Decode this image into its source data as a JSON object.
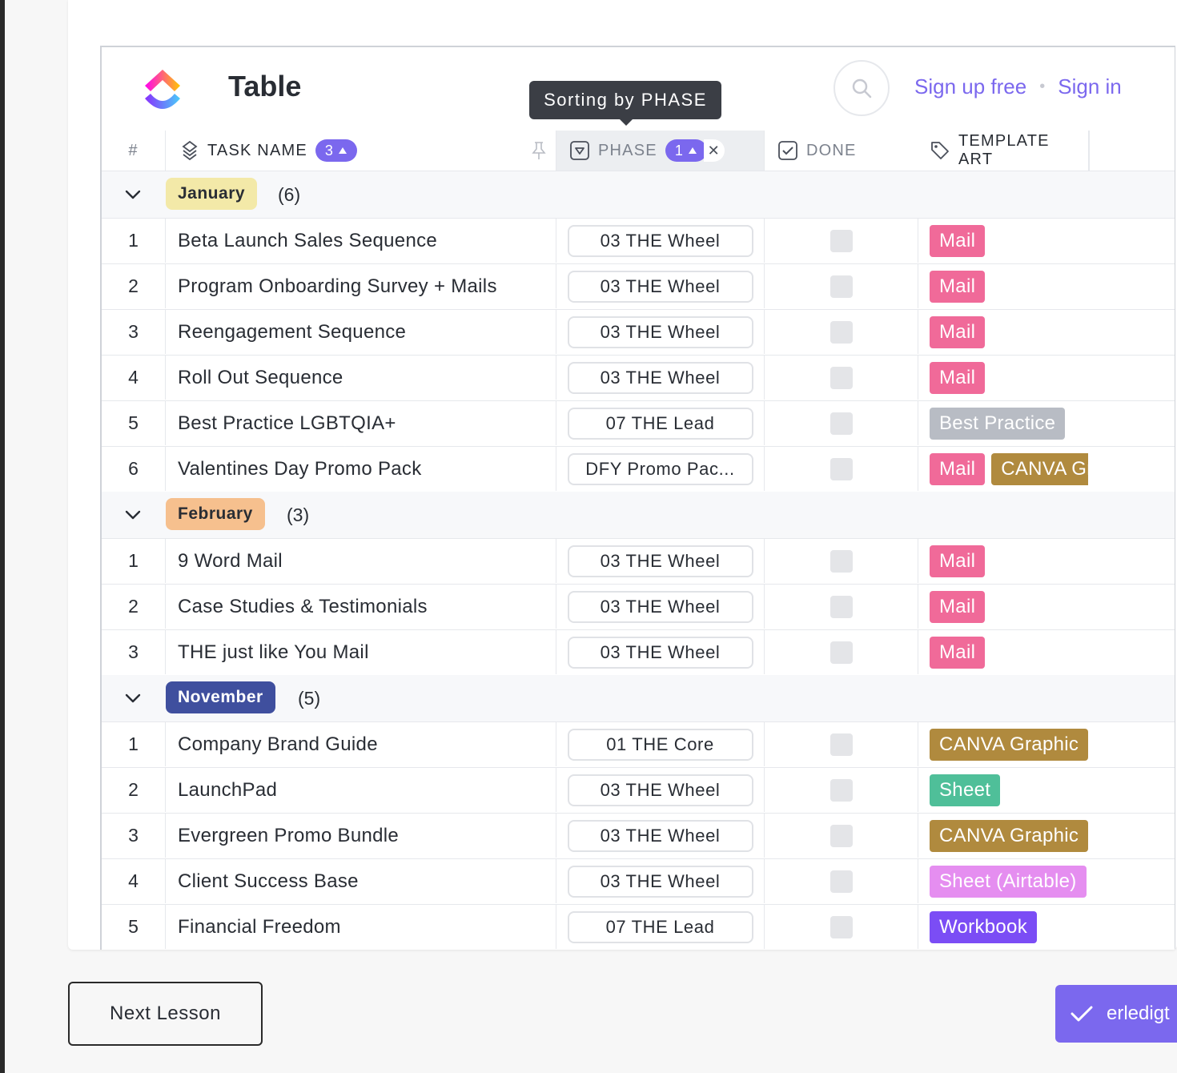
{
  "header": {
    "title": "Table",
    "sign_up": "Sign up free",
    "separator": "•",
    "sign_in": "Sign in",
    "tooltip": "Sorting by PHASE"
  },
  "columns": {
    "num": "#",
    "task_name": "TASK NAME",
    "task_sort": "3",
    "phase": "PHASE",
    "phase_sort": "1",
    "done": "DONE",
    "template_art": "TEMPLATE ART"
  },
  "groups": [
    {
      "label": "January",
      "count": "(6)",
      "bg": "#f3e9a8",
      "fg": "#292d34",
      "rows": [
        {
          "n": "1",
          "task": "Beta Launch Sales Sequence",
          "phase": "03 THE Wheel",
          "tags": [
            {
              "t": "Mail",
              "c": "#f06a99"
            }
          ]
        },
        {
          "n": "2",
          "task": "Program Onboarding Survey + Mails",
          "phase": "03 THE Wheel",
          "tags": [
            {
              "t": "Mail",
              "c": "#f06a99"
            }
          ]
        },
        {
          "n": "3",
          "task": "Reengagement Sequence",
          "phase": "03 THE Wheel",
          "tags": [
            {
              "t": "Mail",
              "c": "#f06a99"
            }
          ]
        },
        {
          "n": "4",
          "task": "Roll Out Sequence",
          "phase": "03 THE Wheel",
          "tags": [
            {
              "t": "Mail",
              "c": "#f06a99"
            }
          ]
        },
        {
          "n": "5",
          "task": "Best Practice LGBTQIA+",
          "phase": "07 THE Lead",
          "tags": [
            {
              "t": "Best Practice",
              "c": "#b8bcc4"
            }
          ]
        },
        {
          "n": "6",
          "task": "Valentines Day Promo Pack",
          "phase": "DFY Promo Pac...",
          "tags": [
            {
              "t": "Mail",
              "c": "#f06a99"
            },
            {
              "t": "CANVA Graphic",
              "c": "#b08a3e"
            }
          ]
        }
      ]
    },
    {
      "label": "February",
      "count": "(3)",
      "bg": "#f6c08e",
      "fg": "#292d34",
      "rows": [
        {
          "n": "1",
          "task": "9 Word Mail",
          "phase": "03 THE Wheel",
          "tags": [
            {
              "t": "Mail",
              "c": "#f06a99"
            }
          ]
        },
        {
          "n": "2",
          "task": "Case Studies & Testimonials",
          "phase": "03 THE Wheel",
          "tags": [
            {
              "t": "Mail",
              "c": "#f06a99"
            }
          ]
        },
        {
          "n": "3",
          "task": "THE just like You Mail",
          "phase": "03 THE Wheel",
          "tags": [
            {
              "t": "Mail",
              "c": "#f06a99"
            }
          ]
        }
      ]
    },
    {
      "label": "November",
      "count": "(5)",
      "bg": "#3f4f9e",
      "fg": "#ffffff",
      "rows": [
        {
          "n": "1",
          "task": "Company Brand Guide",
          "phase": "01 THE Core",
          "tags": [
            {
              "t": "CANVA Graphic",
              "c": "#b08a3e"
            }
          ]
        },
        {
          "n": "2",
          "task": "LaunchPad",
          "phase": "03 THE Wheel",
          "tags": [
            {
              "t": "Sheet",
              "c": "#4fbf99"
            }
          ]
        },
        {
          "n": "3",
          "task": "Evergreen Promo Bundle",
          "phase": "03 THE Wheel",
          "tags": [
            {
              "t": "CANVA Graphic",
              "c": "#b08a3e"
            }
          ]
        },
        {
          "n": "4",
          "task": "Client Success Base",
          "phase": "03 THE Wheel",
          "tags": [
            {
              "t": "Sheet (Airtable)",
              "c": "#e58ef0"
            }
          ]
        },
        {
          "n": "5",
          "task": "Financial Freedom",
          "phase": "07 THE Lead",
          "tags": [
            {
              "t": "Workbook",
              "c": "#7b4df5"
            }
          ]
        }
      ]
    }
  ],
  "footer": {
    "next_lesson": "Next Lesson",
    "complete": "erledigt"
  }
}
